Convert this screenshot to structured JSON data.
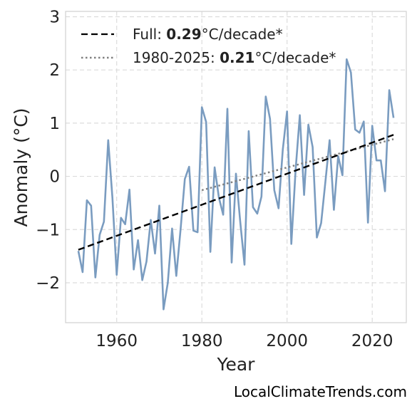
{
  "source_text": "LocalClimateTrends.com",
  "chart_data": {
    "type": "line",
    "xlabel": "Year",
    "ylabel": "Anomaly (°C)",
    "xlim": [
      1948,
      2028
    ],
    "ylim": [
      -2.75,
      3.1
    ],
    "xticks": [
      1960,
      1980,
      2000,
      2020
    ],
    "yticks": [
      -2,
      -1,
      0,
      1,
      2,
      3
    ],
    "ytick_labels": [
      "−2",
      "−1",
      "0",
      "1",
      "2",
      "3"
    ],
    "grid": true,
    "legend_position": "top-left",
    "series": [
      {
        "name": "",
        "color": "#7a9cc0",
        "x": [
          1951,
          1952,
          1953,
          1954,
          1955,
          1956,
          1957,
          1958,
          1959,
          1960,
          1961,
          1962,
          1963,
          1964,
          1965,
          1966,
          1967,
          1968,
          1969,
          1970,
          1971,
          1972,
          1973,
          1974,
          1975,
          1976,
          1977,
          1978,
          1979,
          1980,
          1981,
          1982,
          1983,
          1984,
          1985,
          1986,
          1987,
          1988,
          1989,
          1990,
          1991,
          1992,
          1993,
          1994,
          1995,
          1996,
          1997,
          1998,
          1999,
          2000,
          2001,
          2002,
          2003,
          2004,
          2005,
          2006,
          2007,
          2008,
          2009,
          2010,
          2011,
          2012,
          2013,
          2014,
          2015,
          2016,
          2017,
          2018,
          2019,
          2020,
          2021,
          2022,
          2023,
          2024,
          2025
        ],
        "y": [
          -1.4,
          -1.8,
          -0.45,
          -0.55,
          -1.9,
          -1.1,
          -0.85,
          0.68,
          -0.4,
          -1.85,
          -0.78,
          -0.9,
          -0.25,
          -1.75,
          -1.2,
          -1.95,
          -1.6,
          -0.82,
          -1.45,
          -0.55,
          -2.5,
          -2.0,
          -0.98,
          -1.87,
          -1.0,
          -0.05,
          0.18,
          -1.02,
          -1.05,
          1.3,
          1.02,
          -1.42,
          0.17,
          -0.4,
          -0.72,
          1.27,
          -1.62,
          0.05,
          -0.85,
          -1.66,
          0.85,
          -0.58,
          -0.7,
          -0.38,
          1.5,
          1.08,
          -0.26,
          -0.6,
          0.5,
          1.22,
          -1.27,
          0.12,
          1.15,
          -0.35,
          0.97,
          0.55,
          -1.15,
          -0.88,
          -0.1,
          0.68,
          -0.63,
          0.38,
          0.02,
          2.2,
          1.95,
          0.88,
          0.82,
          1.03,
          -0.87,
          0.95,
          0.3,
          0.3,
          -0.28,
          1.62,
          1.1
        ]
      }
    ],
    "trend_full": {
      "label_prefix": "Full: ",
      "label_value": "0.29",
      "label_suffix": "°C/decade*",
      "color": "#000000",
      "style": "dashed",
      "x": [
        1951,
        2025
      ],
      "y": [
        -1.38,
        0.78
      ]
    },
    "trend_recent": {
      "label_prefix": "1980-2025: ",
      "label_value": "0.21",
      "label_suffix": "°C/decade*",
      "color": "#808080",
      "style": "dotted",
      "x": [
        1980,
        2025
      ],
      "y": [
        -0.26,
        0.7
      ]
    }
  }
}
